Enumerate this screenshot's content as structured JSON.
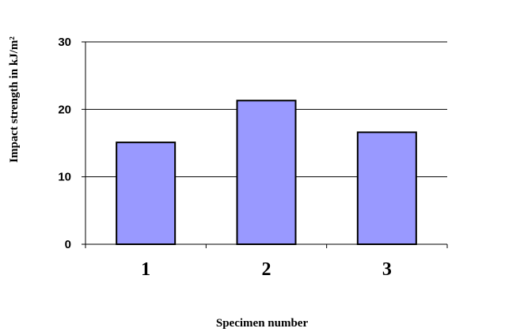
{
  "chart_data": {
    "type": "bar",
    "categories": [
      "1",
      "2",
      "3"
    ],
    "values": [
      15.1,
      21.3,
      16.6
    ],
    "xlabel": "Specimen number",
    "ylabel": "Impact strength in kJ/m²",
    "ylim": [
      0,
      30
    ],
    "yticks": [
      0,
      10,
      20,
      30
    ],
    "grid": true,
    "colors": {
      "bar": "#9999ff",
      "outline": "#000000"
    }
  }
}
